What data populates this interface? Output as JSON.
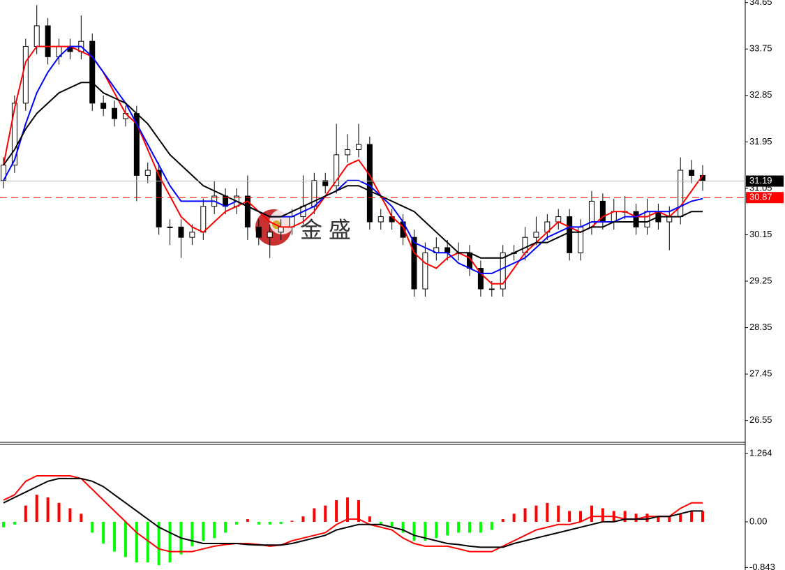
{
  "chart_data": [
    {
      "type": "candlestick",
      "watermark": "金 盛",
      "up_color": "#ffffff",
      "down_color": "#000000",
      "open": [
        31.2,
        31.5,
        32.7,
        33.8,
        34.2,
        33.6,
        33.8,
        33.7,
        33.9,
        32.7,
        32.6,
        32.4,
        32.5,
        31.3,
        31.4,
        30.3,
        30.3,
        30.1,
        30.2,
        30.7,
        30.9,
        30.7,
        30.9,
        30.3,
        30.1,
        30.2,
        30.3,
        30.5,
        30.7,
        31.2,
        31.1,
        31.7,
        31.8,
        31.9,
        30.4,
        30.5,
        30.4,
        30.1,
        29.1,
        29.8,
        29.9,
        29.8,
        29.8,
        29.5,
        29.1,
        29.1,
        29.8,
        29.8,
        30.1,
        30.2,
        30.4,
        30.5,
        29.8,
        30.3,
        30.8,
        30.4,
        30.6,
        30.6,
        30.3,
        30.6,
        30.4,
        30.5,
        31.4,
        31.3
      ],
      "high": [
        31.65,
        32.85,
        33.95,
        34.6,
        34.35,
        33.95,
        33.95,
        34.4,
        34.05,
        32.85,
        32.75,
        32.65,
        32.65,
        31.55,
        31.55,
        30.45,
        30.45,
        30.35,
        30.85,
        31.2,
        31.05,
        31.05,
        31.3,
        30.45,
        30.35,
        30.45,
        30.65,
        31.3,
        31.35,
        31.35,
        32.3,
        32.1,
        32.3,
        32.05,
        30.65,
        30.65,
        30.55,
        30.25,
        30.0,
        30.1,
        30.05,
        30.0,
        29.95,
        29.65,
        29.25,
        29.95,
        29.95,
        30.3,
        30.5,
        30.55,
        30.65,
        30.65,
        30.45,
        31.0,
        30.95,
        30.85,
        30.9,
        30.75,
        30.85,
        30.75,
        30.7,
        31.65,
        31.6,
        31.5
      ],
      "low": [
        31.05,
        31.35,
        32.55,
        33.65,
        33.45,
        33.45,
        33.55,
        33.55,
        32.55,
        32.45,
        32.25,
        32.25,
        30.8,
        31.15,
        30.15,
        29.95,
        29.7,
        29.95,
        30.05,
        30.55,
        30.55,
        30.55,
        30.05,
        29.95,
        29.7,
        30.05,
        30.15,
        30.35,
        30.55,
        30.95,
        30.95,
        31.55,
        31.65,
        30.25,
        30.25,
        30.25,
        29.95,
        28.95,
        28.95,
        29.65,
        29.65,
        29.65,
        29.35,
        28.95,
        28.95,
        28.95,
        29.65,
        29.65,
        29.95,
        30.05,
        30.25,
        29.65,
        29.65,
        30.15,
        30.25,
        30.25,
        30.45,
        30.15,
        30.15,
        30.25,
        29.85,
        30.35,
        31.15,
        31.0
      ],
      "close": [
        31.5,
        32.7,
        33.8,
        34.2,
        33.6,
        33.8,
        33.7,
        33.9,
        32.7,
        32.6,
        32.4,
        32.5,
        31.3,
        31.4,
        30.3,
        30.3,
        30.1,
        30.2,
        30.7,
        30.9,
        30.7,
        30.9,
        30.3,
        30.1,
        30.2,
        30.3,
        30.5,
        30.7,
        31.2,
        31.1,
        31.7,
        31.8,
        31.9,
        30.4,
        30.5,
        30.4,
        30.1,
        29.1,
        29.8,
        29.9,
        29.8,
        29.8,
        29.5,
        29.1,
        29.1,
        29.8,
        29.8,
        30.1,
        30.2,
        30.4,
        30.5,
        29.8,
        30.3,
        30.8,
        30.4,
        30.6,
        30.6,
        30.3,
        30.6,
        30.4,
        30.5,
        31.4,
        31.3,
        31.19
      ],
      "series": [
        {
          "color": "#ff0000",
          "values": [
            31.5,
            32.6,
            33.5,
            33.8,
            33.8,
            33.8,
            33.8,
            33.7,
            33.6,
            33.3,
            32.9,
            32.5,
            32.3,
            31.8,
            31.3,
            30.9,
            30.5,
            30.3,
            30.2,
            30.4,
            30.6,
            30.7,
            30.8,
            30.6,
            30.4,
            30.3,
            30.3,
            30.4,
            30.6,
            30.9,
            31.2,
            31.5,
            31.6,
            31.3,
            30.9,
            30.5,
            30.3,
            29.8,
            29.6,
            29.5,
            29.7,
            29.8,
            29.7,
            29.4,
            29.2,
            29.2,
            29.5,
            29.8,
            30.0,
            30.2,
            30.4,
            30.3,
            30.2,
            30.3,
            30.5,
            30.6,
            30.6,
            30.5,
            30.5,
            30.6,
            30.5,
            30.7,
            31.0,
            31.3
          ]
        },
        {
          "color": "#0000ff",
          "values": [
            31.2,
            31.6,
            32.3,
            32.9,
            33.3,
            33.6,
            33.8,
            33.8,
            33.6,
            33.3,
            33.0,
            32.7,
            32.3,
            31.9,
            31.5,
            31.1,
            30.8,
            30.8,
            30.8,
            30.8,
            30.7,
            30.8,
            30.7,
            30.6,
            30.5,
            30.5,
            30.5,
            30.6,
            30.7,
            30.9,
            31.0,
            31.2,
            31.2,
            31.1,
            30.9,
            30.7,
            30.4,
            30.0,
            29.9,
            29.8,
            29.8,
            29.6,
            29.5,
            29.4,
            29.4,
            29.5,
            29.6,
            29.7,
            29.9,
            30.1,
            30.2,
            30.3,
            30.3,
            30.4,
            30.4,
            30.4,
            30.5,
            30.5,
            30.6,
            30.6,
            30.6,
            30.7,
            30.8,
            30.85
          ]
        },
        {
          "color": "#000000",
          "values": [
            31.5,
            31.8,
            32.2,
            32.5,
            32.7,
            32.9,
            33.0,
            33.1,
            33.1,
            32.9,
            32.8,
            32.7,
            32.5,
            32.3,
            32.0,
            31.7,
            31.5,
            31.3,
            31.1,
            31.0,
            30.9,
            30.8,
            30.7,
            30.6,
            30.5,
            30.5,
            30.6,
            30.7,
            30.8,
            30.9,
            31.0,
            31.1,
            31.1,
            31.0,
            30.9,
            30.8,
            30.7,
            30.6,
            30.4,
            30.2,
            30.0,
            29.8,
            29.8,
            29.7,
            29.7,
            29.7,
            29.8,
            29.9,
            30.0,
            30.0,
            30.1,
            30.2,
            30.2,
            30.3,
            30.3,
            30.4,
            30.4,
            30.4,
            30.4,
            30.5,
            30.5,
            30.5,
            30.6,
            30.6
          ]
        }
      ],
      "current_price": 31.19,
      "current_price_color": "#000000",
      "level_line": 30.87,
      "level_line_color": "#ff0000",
      "ylim": [
        26.14,
        34.7
      ],
      "yticks": [
        26.55,
        27.45,
        28.35,
        29.25,
        30.15,
        31.05,
        31.95,
        32.85,
        33.75,
        34.65
      ]
    },
    {
      "type": "bar",
      "up_color": "#ff0000",
      "down_color": "#00ff00",
      "values": [
        -0.1,
        -0.05,
        0.3,
        0.5,
        0.45,
        0.35,
        0.25,
        0.15,
        -0.2,
        -0.4,
        -0.55,
        -0.65,
        -0.75,
        -0.75,
        -0.8,
        -0.75,
        -0.6,
        -0.45,
        -0.35,
        -0.3,
        -0.2,
        -0.05,
        0.05,
        -0.05,
        -0.05,
        -0.04,
        0.02,
        0.1,
        0.25,
        0.3,
        0.4,
        0.45,
        0.4,
        0.1,
        -0.05,
        -0.1,
        -0.2,
        -0.35,
        -0.35,
        -0.3,
        -0.25,
        -0.2,
        -0.2,
        -0.2,
        -0.15,
        0.05,
        0.15,
        0.25,
        0.3,
        0.35,
        0.3,
        0.2,
        0.2,
        0.3,
        0.25,
        0.2,
        0.2,
        0.15,
        0.15,
        0.1,
        0.1,
        0.15,
        0.2,
        0.2
      ],
      "series": [
        {
          "color": "#ff0000",
          "values": [
            0.4,
            0.5,
            0.75,
            0.85,
            0.85,
            0.85,
            0.85,
            0.8,
            0.6,
            0.4,
            0.2,
            0.0,
            -0.2,
            -0.35,
            -0.5,
            -0.55,
            -0.55,
            -0.55,
            -0.5,
            -0.45,
            -0.42,
            -0.4,
            -0.4,
            -0.42,
            -0.45,
            -0.43,
            -0.35,
            -0.3,
            -0.25,
            -0.2,
            -0.05,
            0.05,
            0.05,
            -0.05,
            -0.1,
            -0.15,
            -0.3,
            -0.4,
            -0.45,
            -0.45,
            -0.45,
            -0.5,
            -0.55,
            -0.55,
            -0.55,
            -0.45,
            -0.35,
            -0.25,
            -0.15,
            -0.1,
            -0.05,
            -0.05,
            0.0,
            0.1,
            0.1,
            0.1,
            0.05,
            0.05,
            0.1,
            0.1,
            0.1,
            0.25,
            0.35,
            0.35
          ]
        },
        {
          "color": "#000000",
          "values": [
            0.35,
            0.45,
            0.55,
            0.65,
            0.75,
            0.8,
            0.8,
            0.8,
            0.75,
            0.65,
            0.5,
            0.35,
            0.2,
            0.05,
            -0.1,
            -0.2,
            -0.3,
            -0.35,
            -0.4,
            -0.4,
            -0.4,
            -0.4,
            -0.42,
            -0.43,
            -0.43,
            -0.43,
            -0.4,
            -0.35,
            -0.3,
            -0.25,
            -0.15,
            -0.1,
            -0.05,
            -0.05,
            -0.05,
            -0.1,
            -0.15,
            -0.25,
            -0.3,
            -0.35,
            -0.4,
            -0.42,
            -0.45,
            -0.47,
            -0.47,
            -0.47,
            -0.4,
            -0.35,
            -0.3,
            -0.25,
            -0.2,
            -0.15,
            -0.1,
            -0.05,
            0.0,
            0.0,
            0.05,
            0.05,
            0.05,
            0.1,
            0.1,
            0.15,
            0.2,
            0.2
          ]
        }
      ],
      "ylim": [
        -0.89,
        1.43
      ],
      "yticks": [
        -0.843,
        {
          "value": 0,
          "label": "0.00"
        },
        1.264
      ]
    }
  ]
}
